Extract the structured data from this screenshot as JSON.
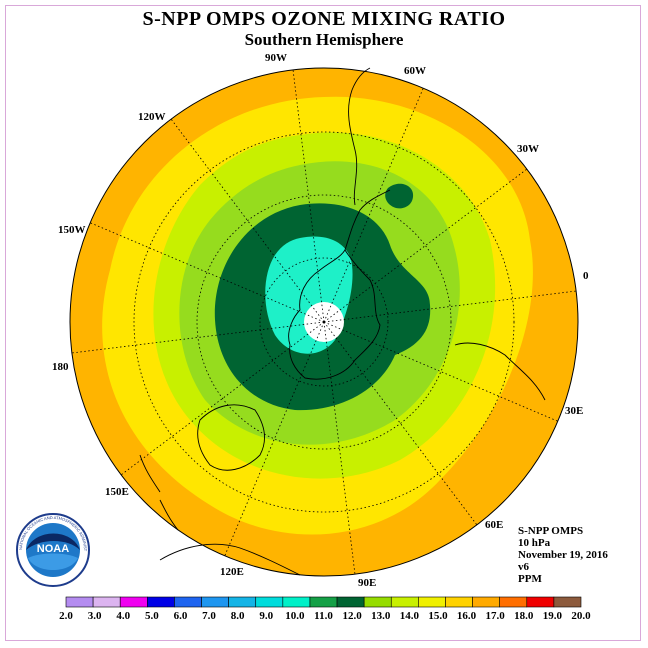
{
  "title": "S-NPP OMPS OZONE MIXING RATIO",
  "subtitle": "Southern Hemisphere",
  "info": {
    "instrument": "S-NPP OMPS",
    "level": "10 hPa",
    "date": "November 19, 2016",
    "version": "v6",
    "units": "PPM"
  },
  "longitude_labels": {
    "lon_90w": "90W",
    "lon_60w": "60W",
    "lon_30w": "30W",
    "lon_0": "0",
    "lon_30e": "30E",
    "lon_60e": "60E",
    "lon_90e": "90E",
    "lon_120e": "120E",
    "lon_150e": "150E",
    "lon_180": "180",
    "lon_150w": "150W",
    "lon_120w": "120W"
  },
  "colorbar": {
    "ticks": [
      "2.0",
      "3.0",
      "4.0",
      "5.0",
      "6.0",
      "7.0",
      "8.0",
      "9.0",
      "10.0",
      "11.0",
      "12.0",
      "13.0",
      "14.0",
      "15.0",
      "16.0",
      "17.0",
      "18.0",
      "19.0",
      "20.0"
    ],
    "colors": [
      "#b48cf0",
      "#dcb4f0",
      "#f000f0",
      "#0000e6",
      "#1e64f0",
      "#1e96f0",
      "#14b4e6",
      "#00dcdc",
      "#00f0c8",
      "#14a046",
      "#006432",
      "#96dc00",
      "#c8f000",
      "#f0f000",
      "#ffd200",
      "#ffaa00",
      "#ff6e00",
      "#f00000",
      "#8c5a3c"
    ]
  },
  "map_colors": {
    "c16": "#ffb400",
    "c15": "#ffe600",
    "c14": "#c8f000",
    "c13": "#96dc1e",
    "c12": "#006432",
    "c10": "#1ef0c8",
    "center": "#ffffff"
  },
  "logo": {
    "text": "NOAA",
    "ring_text": "NATIONAL OCEANIC AND ATMOSPHERIC ADMINISTRATION · U.S. DEPARTMENT OF COMMERCE"
  }
}
